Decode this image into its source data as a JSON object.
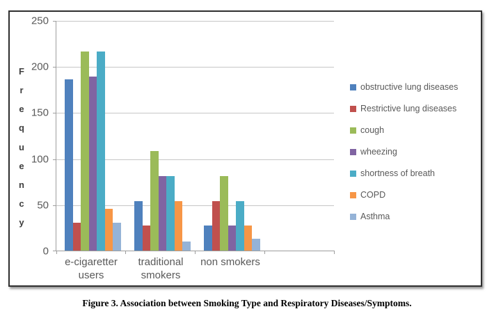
{
  "figure": {
    "caption_prefix": "Figure 3.",
    "caption_text": " Association between Smoking Type and Respiratory Diseases/Symptoms."
  },
  "chart_data": {
    "type": "bar",
    "title": "",
    "xlabel": "",
    "ylabel": "Frequency",
    "ylabel_letters": [
      "F",
      "r",
      "e",
      "q",
      "u",
      "e",
      "n",
      "c",
      "y"
    ],
    "ylim": [
      0,
      250
    ],
    "yticks": [
      250,
      200,
      150,
      100,
      50,
      0
    ],
    "grid": true,
    "legend_position": "right",
    "categories": [
      "e-cigaretter users",
      "traditional smokers",
      "non smokers"
    ],
    "category_label_lines": [
      [
        "e-cigaretter",
        "users"
      ],
      [
        "traditional",
        "smokers"
      ],
      [
        "non smokers"
      ]
    ],
    "num_category_slots": 4,
    "series": [
      {
        "name": "obstructive lung diseases",
        "color": "#4F81BD",
        "values": [
          186,
          54,
          27
        ]
      },
      {
        "name": "Restrictive lung diseases",
        "color": "#C0504D",
        "values": [
          30,
          27,
          54
        ]
      },
      {
        "name": "cough",
        "color": "#9BBB59",
        "values": [
          216,
          108,
          81
        ]
      },
      {
        "name": "wheezing",
        "color": "#8064A2",
        "values": [
          189,
          81,
          27
        ]
      },
      {
        "name": "shortness of breath",
        "color": "#4BACC6",
        "values": [
          216,
          81,
          54
        ]
      },
      {
        "name": "COPD",
        "color": "#F79646",
        "values": [
          45,
          54,
          27
        ]
      },
      {
        "name": "Asthma",
        "color": "#95B3D7",
        "values": [
          30,
          10,
          13
        ]
      }
    ],
    "colors": {
      "gridline": "#c6c6c6",
      "axis_line": "#9d9d9d",
      "tick_text": "#595959",
      "axis_title_text": "#3f3f3f",
      "frame_border": "#2f2f2f"
    }
  }
}
